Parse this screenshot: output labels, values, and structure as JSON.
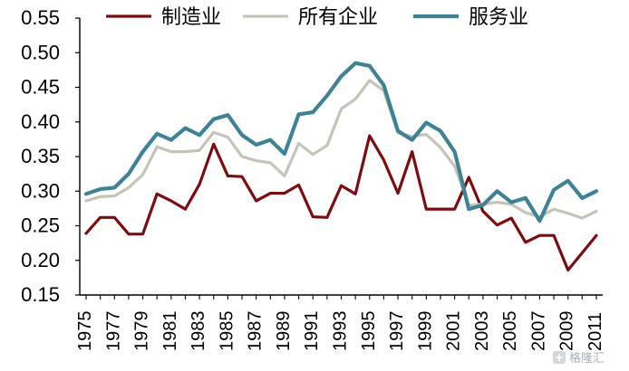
{
  "chart_data": {
    "type": "line",
    "title": "",
    "xlabel": "",
    "ylabel": "",
    "ylim": [
      0.15,
      0.55
    ],
    "yticks": [
      "0.15",
      "0.20",
      "0.25",
      "0.30",
      "0.35",
      "0.40",
      "0.45",
      "0.50",
      "0.55"
    ],
    "x": [
      1975,
      1976,
      1977,
      1978,
      1979,
      1980,
      1981,
      1982,
      1983,
      1984,
      1985,
      1986,
      1987,
      1988,
      1989,
      1990,
      1991,
      1992,
      1993,
      1994,
      1995,
      1996,
      1997,
      1998,
      1999,
      2000,
      2001,
      2002,
      2003,
      2004,
      2005,
      2006,
      2007,
      2008,
      2009,
      2010,
      2011
    ],
    "xticks": [
      "1975",
      "1977",
      "1979",
      "1981",
      "1983",
      "1985",
      "1987",
      "1989",
      "1991",
      "1993",
      "1995",
      "1997",
      "1999",
      "2001",
      "2003",
      "2005",
      "2007",
      "2009",
      "2011"
    ],
    "series": [
      {
        "name": "制造业",
        "color": "#7b0d10",
        "values": [
          0.239,
          0.262,
          0.262,
          0.238,
          0.238,
          0.296,
          0.286,
          0.274,
          0.31,
          0.368,
          0.322,
          0.321,
          0.286,
          0.297,
          0.297,
          0.309,
          0.263,
          0.262,
          0.308,
          0.296,
          0.38,
          0.345,
          0.297,
          0.357,
          0.274,
          0.274,
          0.274,
          0.32,
          0.271,
          0.251,
          0.261,
          0.226,
          0.236,
          0.236,
          0.186,
          0.211,
          0.236
        ]
      },
      {
        "name": "所有企业",
        "color": "#c6c4b8",
        "values": [
          0.286,
          0.292,
          0.293,
          0.305,
          0.324,
          0.364,
          0.357,
          0.357,
          0.359,
          0.385,
          0.378,
          0.35,
          0.344,
          0.341,
          0.322,
          0.369,
          0.353,
          0.366,
          0.419,
          0.433,
          0.46,
          0.445,
          0.384,
          0.379,
          0.382,
          0.363,
          0.336,
          0.28,
          0.281,
          0.284,
          0.281,
          0.269,
          0.263,
          0.274,
          0.268,
          0.261,
          0.271
        ]
      },
      {
        "name": "服务业",
        "color": "#3d8395",
        "values": [
          0.296,
          0.303,
          0.305,
          0.325,
          0.357,
          0.383,
          0.374,
          0.391,
          0.381,
          0.404,
          0.41,
          0.381,
          0.367,
          0.374,
          0.354,
          0.411,
          0.414,
          0.438,
          0.466,
          0.485,
          0.481,
          0.453,
          0.387,
          0.374,
          0.399,
          0.387,
          0.357,
          0.274,
          0.28,
          0.3,
          0.284,
          0.29,
          0.257,
          0.302,
          0.315,
          0.29,
          0.3
        ]
      }
    ],
    "legend": {
      "position": "top",
      "entries": [
        "制造业",
        "所有企业",
        "服务业"
      ]
    },
    "grid": false
  },
  "watermark": {
    "text": "格隆汇"
  }
}
